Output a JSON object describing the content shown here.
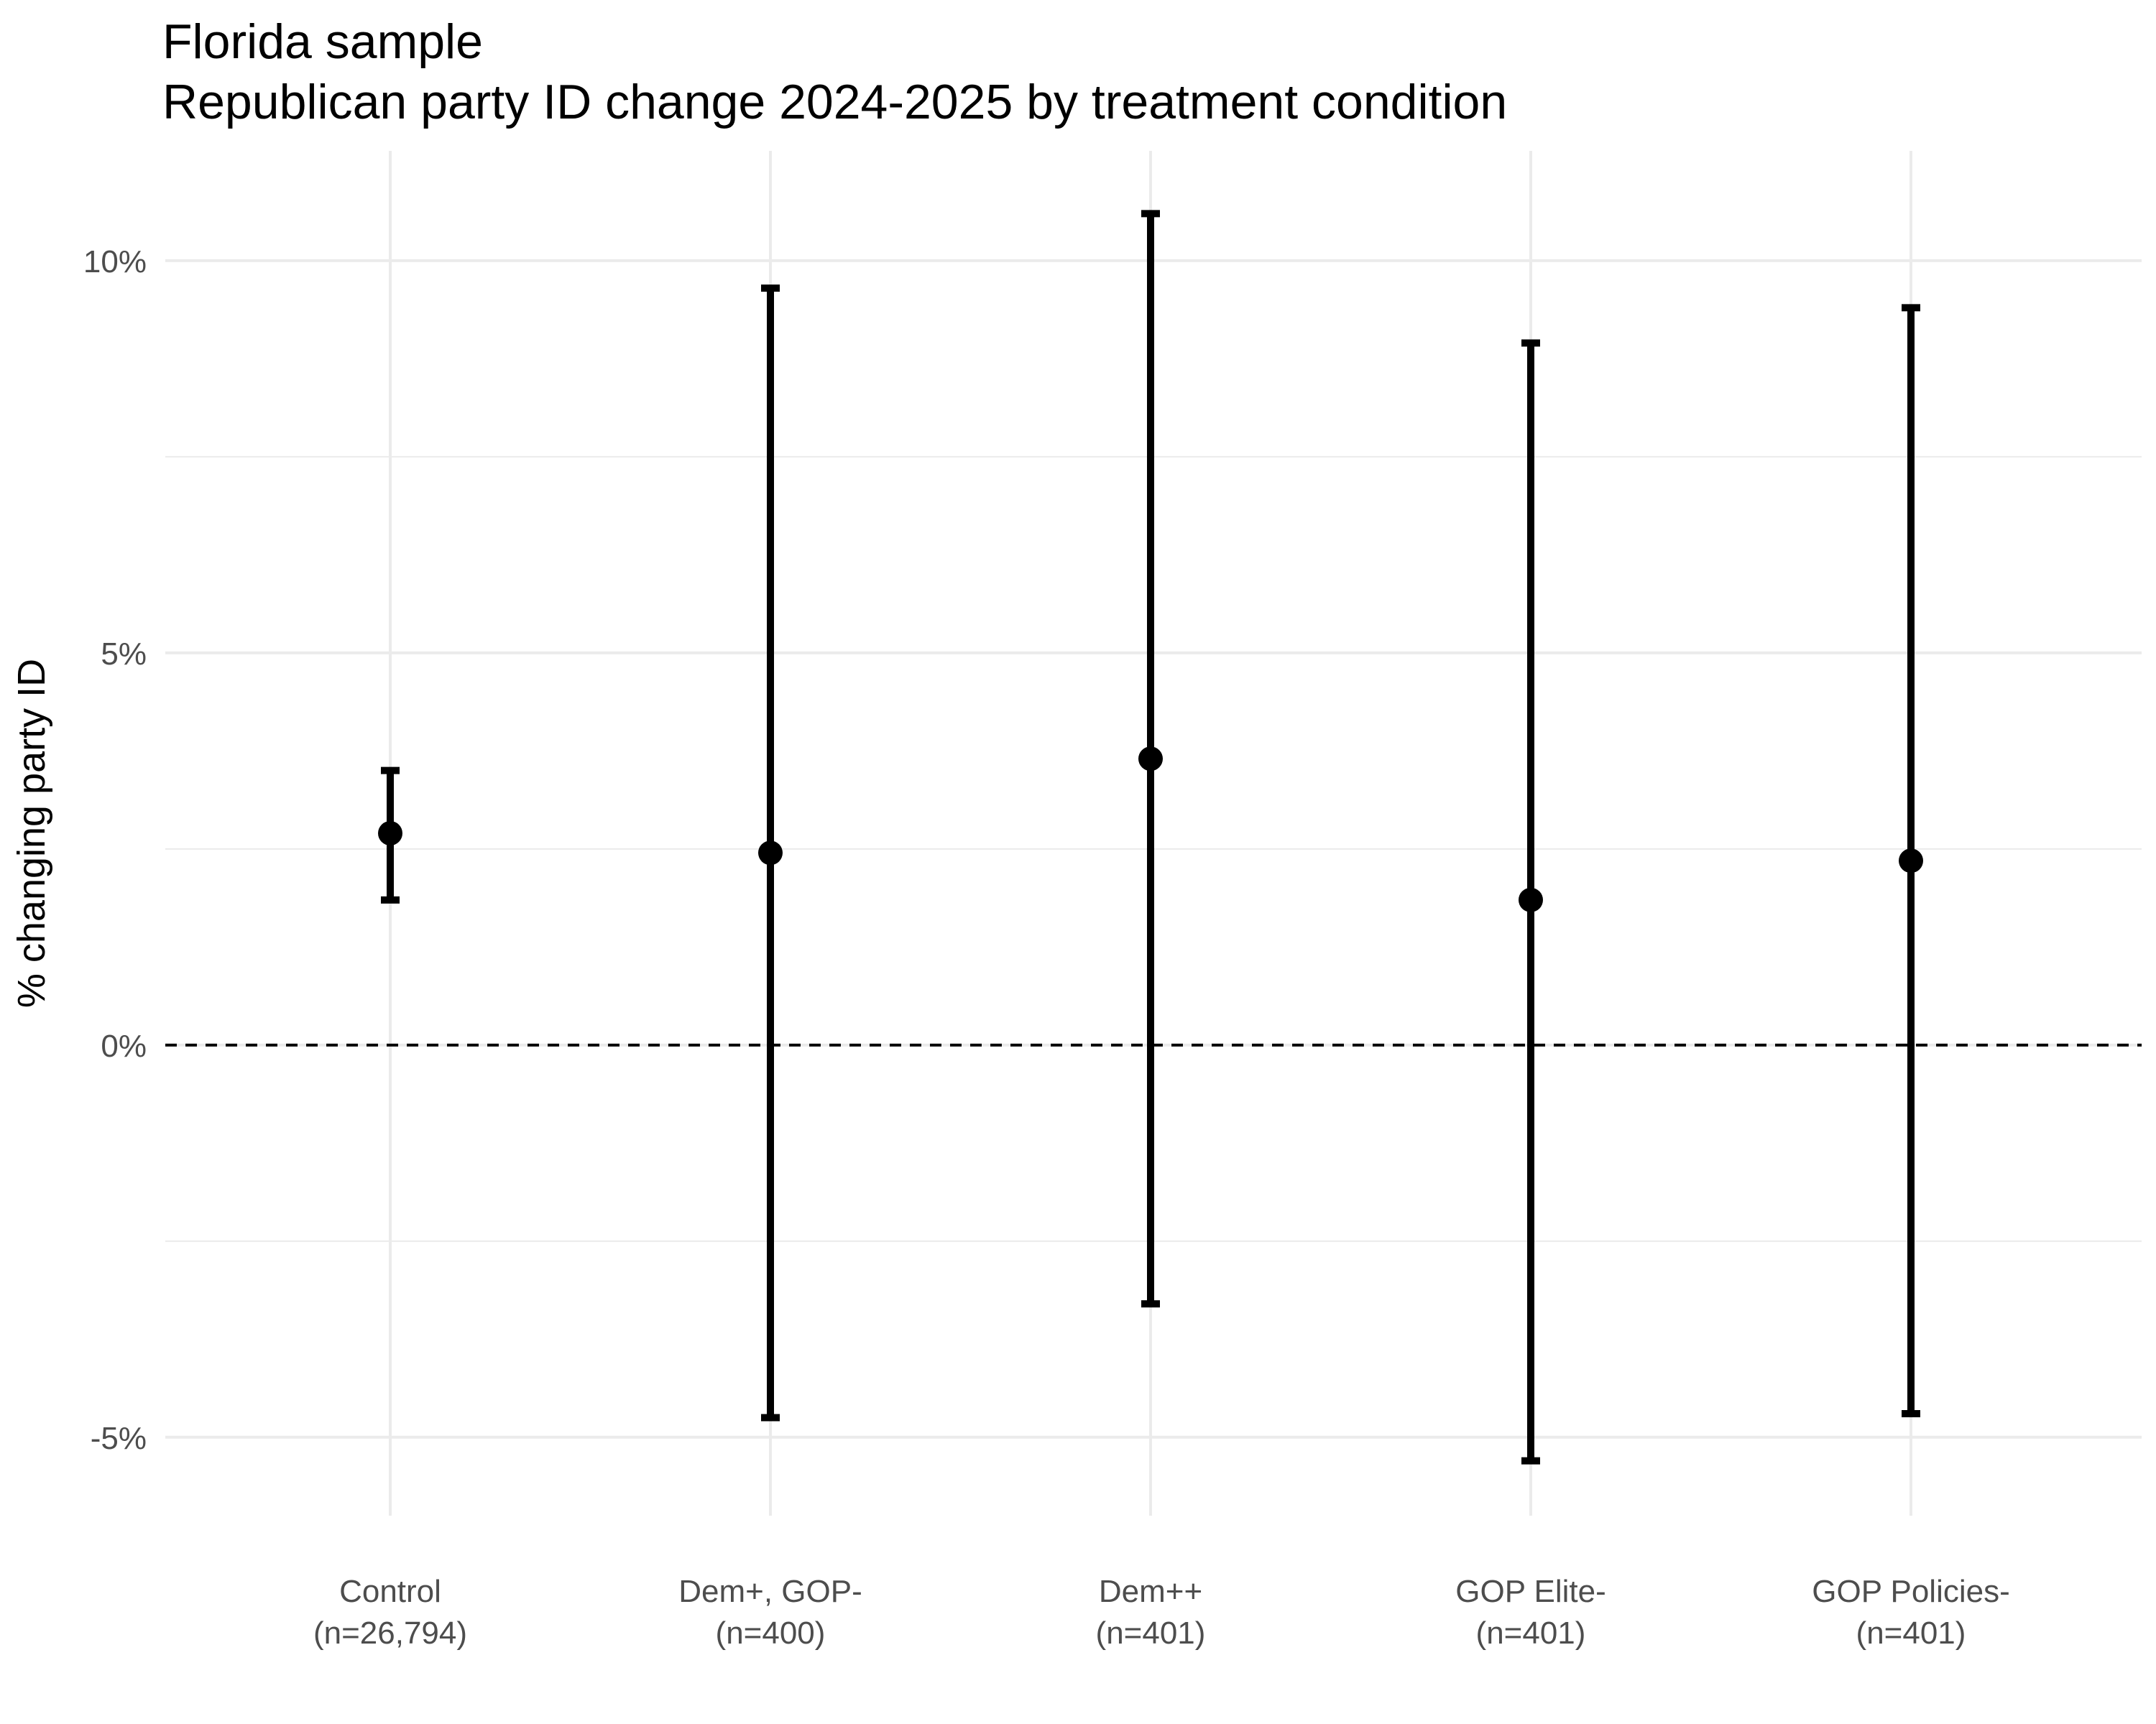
{
  "chart_data": {
    "type": "errorbar",
    "title": "Florida sample",
    "subtitle": "Republican party ID change 2024-2025 by treatment condition",
    "xlabel": "",
    "ylabel": "% changing party ID",
    "ylim": [
      -6,
      11.4
    ],
    "yticks": [
      -5,
      0,
      5,
      10
    ],
    "ytick_labels": [
      "-5%",
      "0%",
      "5%",
      "10%"
    ],
    "grid": true,
    "reference_line": {
      "y": 0,
      "style": "dashed"
    },
    "categories": [
      {
        "label": "Control",
        "n_label": "(n=26,794)"
      },
      {
        "label": "Dem+, GOP-",
        "n_label": "(n=400)"
      },
      {
        "label": "Dem++",
        "n_label": "(n=401)"
      },
      {
        "label": "GOP Elite-",
        "n_label": "(n=401)"
      },
      {
        "label": "GOP Policies-",
        "n_label": "(n=401)"
      }
    ],
    "estimates": [
      2.7,
      2.45,
      3.65,
      1.85,
      2.35
    ],
    "lower": [
      1.85,
      -4.75,
      -3.3,
      -5.3,
      -4.7
    ],
    "upper": [
      3.5,
      9.65,
      10.6,
      8.95,
      9.4
    ]
  }
}
